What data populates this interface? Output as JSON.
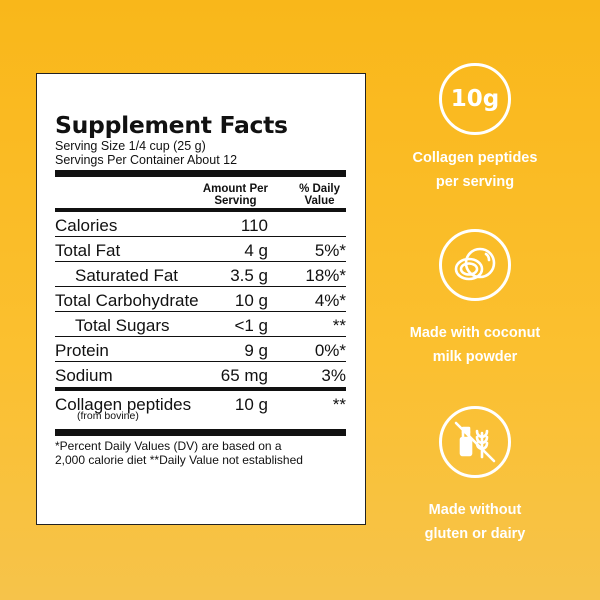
{
  "facts": {
    "title": "Supplement Facts",
    "serving_size": "Serving Size 1/4 cup (25 g)",
    "servings_per_container": "Servings Per Container About 12",
    "col_amount": [
      "Amount Per",
      "Serving"
    ],
    "col_dv": [
      "% Daily",
      "Value"
    ],
    "rows": [
      {
        "name": "Calories",
        "amount": "110",
        "dv": ""
      },
      {
        "name": "Total Fat",
        "amount": "4 g",
        "dv": "5%*"
      },
      {
        "name": "Saturated Fat",
        "amount": "3.5 g",
        "dv": "18%*"
      },
      {
        "name": "Total Carbohydrate",
        "amount": "10 g",
        "dv": "4%*"
      },
      {
        "name": "Total Sugars",
        "amount": "<1 g",
        "dv": "**"
      },
      {
        "name": "Protein",
        "amount": "9 g",
        "dv": "0%*"
      },
      {
        "name": "Sodium",
        "amount": "65 mg",
        "dv": "3%"
      },
      {
        "name": "Collagen peptides",
        "note": "(from bovine)",
        "amount": "10 g",
        "dv": "**"
      }
    ],
    "footnote": [
      "*Percent Daily Values (DV) are based on a",
      "2,000 calorie diet **Daily Value not established"
    ]
  },
  "badges": [
    {
      "text": "10g",
      "caption": [
        "Collagen peptides",
        "per serving"
      ]
    },
    {
      "icon": "coconut-icon",
      "caption": [
        "Made with coconut",
        "milk powder"
      ]
    },
    {
      "icon": "no-gluten-no-dairy-icon",
      "caption": [
        "Made without",
        "gluten or dairy"
      ]
    }
  ],
  "colors": {
    "background": "#f9b71a",
    "panel": "#ffffff",
    "ink": "#111111",
    "badge": "#ffffff"
  }
}
